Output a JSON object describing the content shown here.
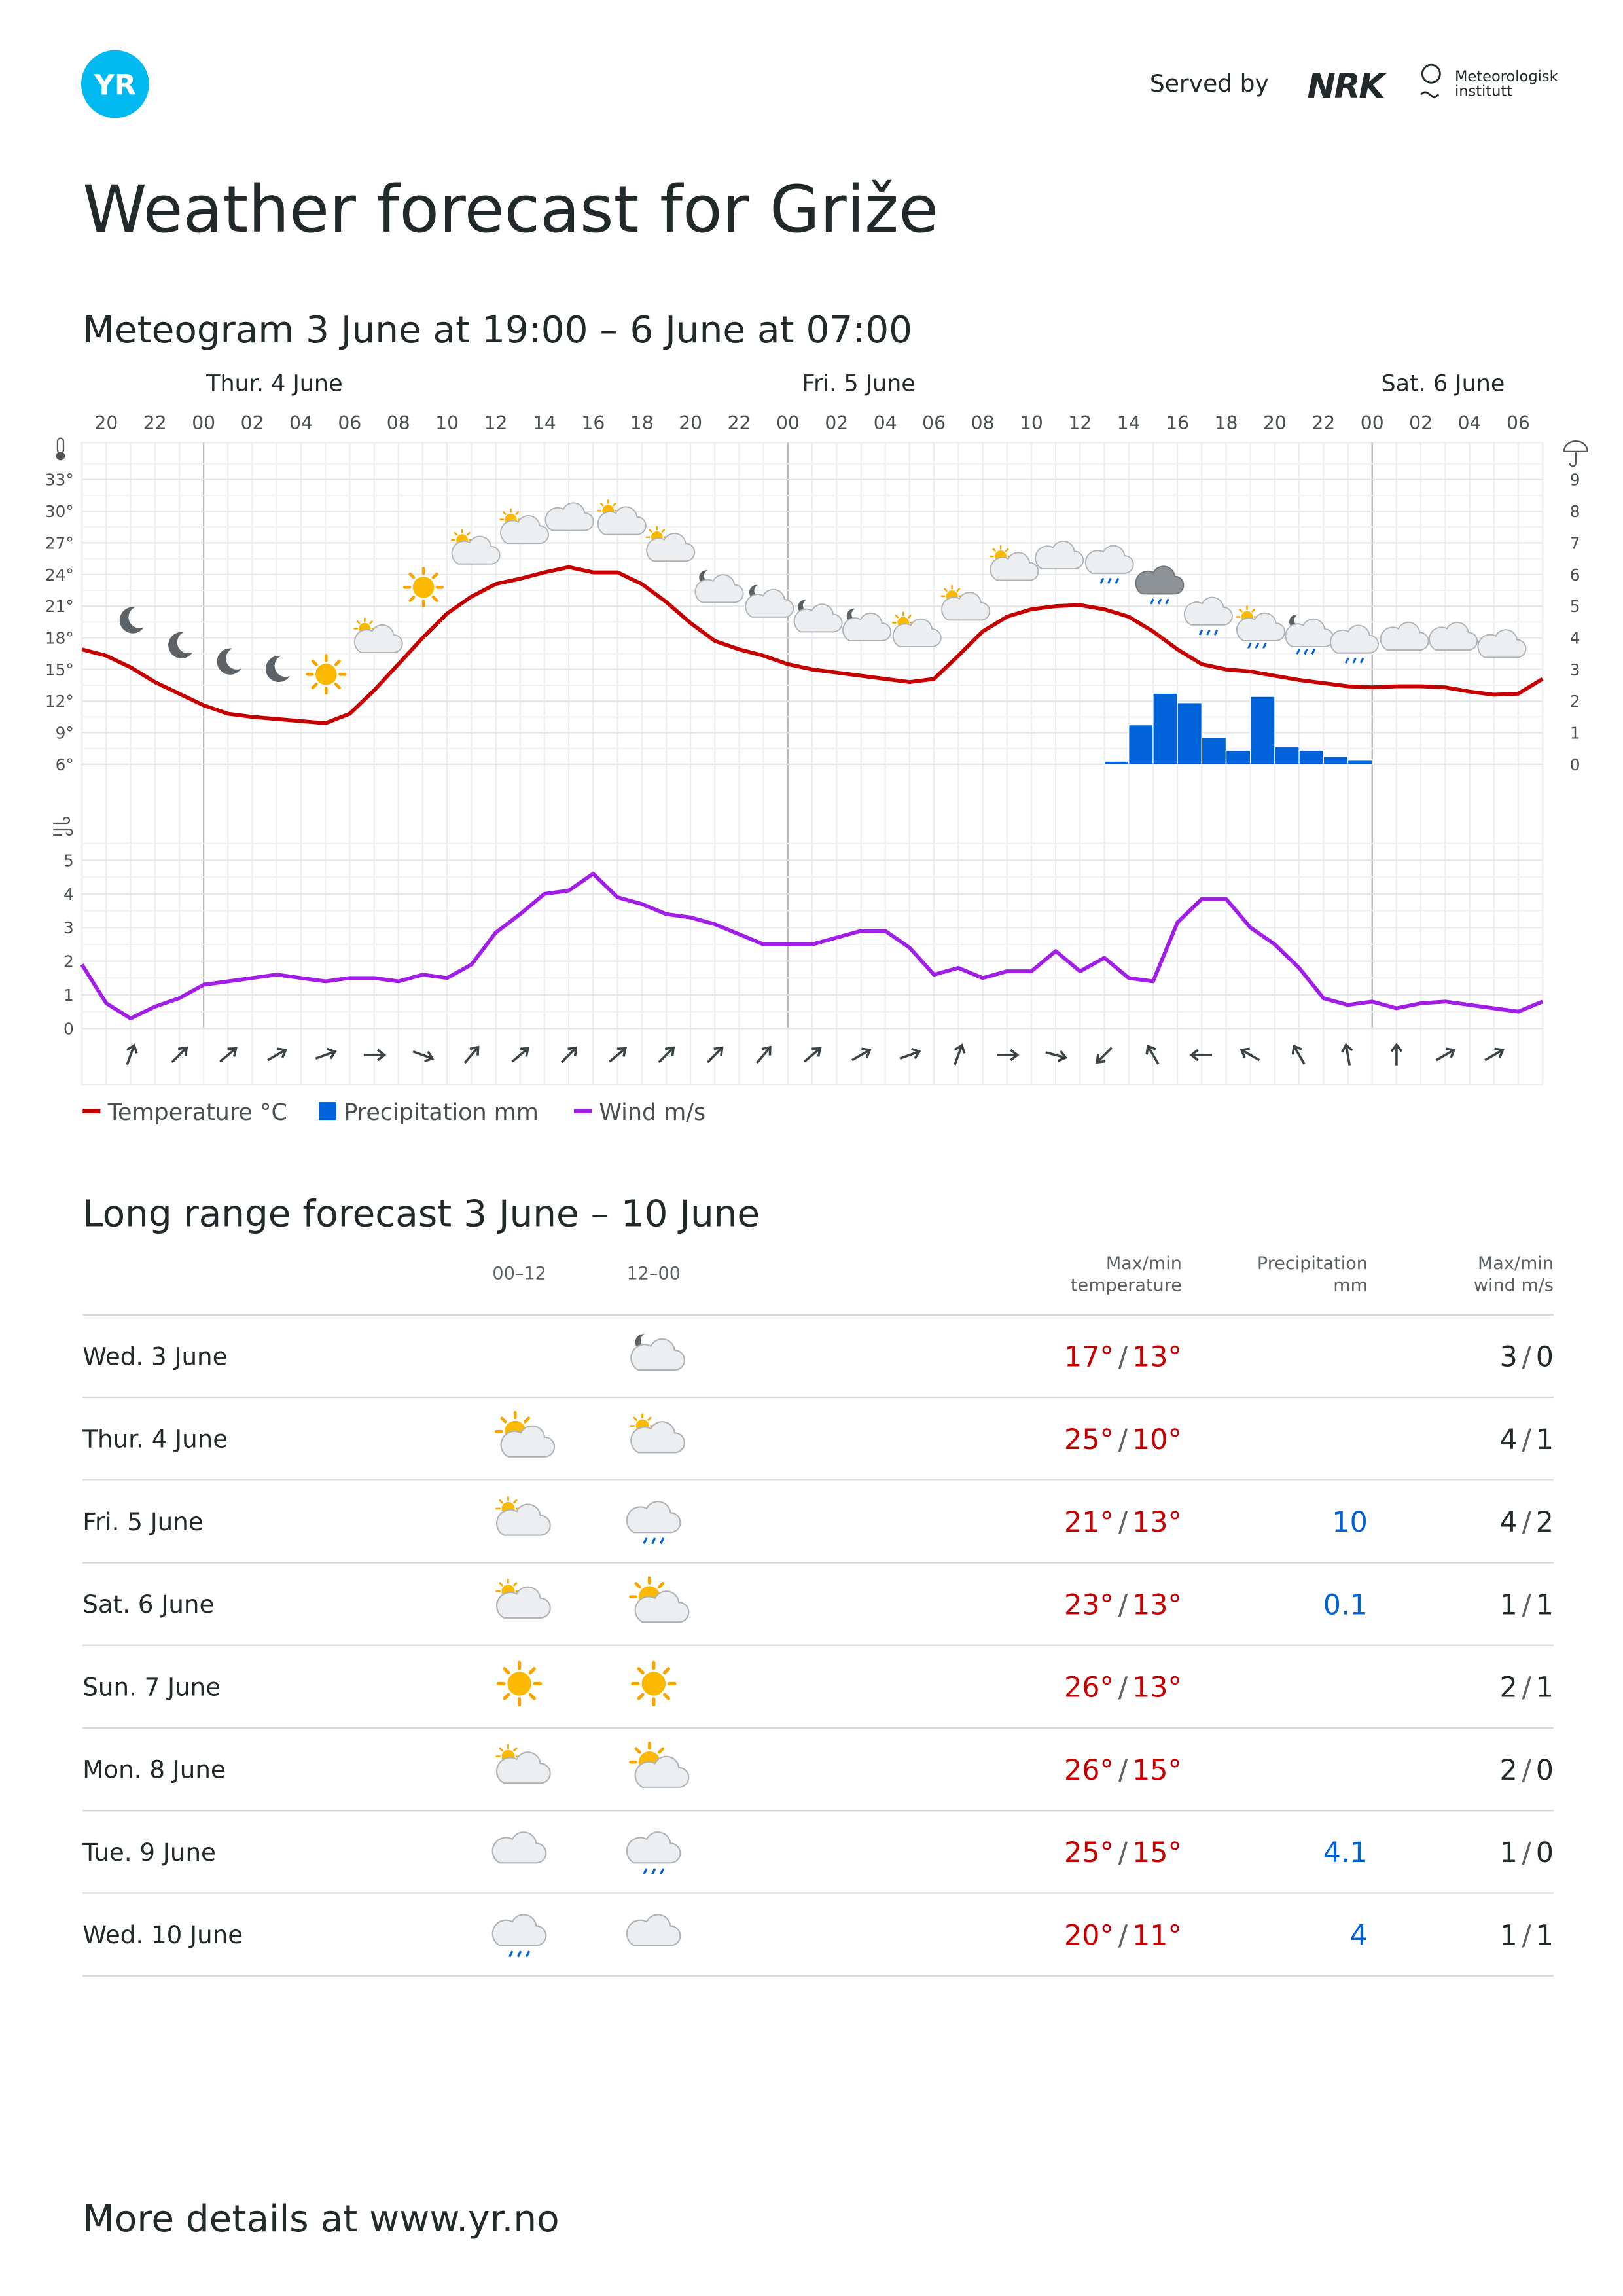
{
  "header": {
    "logo": "YR",
    "served_by": "Served by",
    "partner": "NRK",
    "institute": [
      "Meteorologisk",
      "institutt"
    ]
  },
  "title": "Weather forecast for Griže",
  "meteogram": {
    "type": "line",
    "title": "Meteogram 3 June at 19:00 – 6 June at 07:00",
    "days": [
      "Thur. 4 June",
      "Fri. 5 June",
      "Sat. 6 June"
    ],
    "hour_labels": [
      "20",
      "22",
      "00",
      "02",
      "04",
      "06",
      "08",
      "10",
      "12",
      "14",
      "16",
      "18",
      "20",
      "22",
      "00",
      "02",
      "04",
      "06",
      "08",
      "10",
      "12",
      "14",
      "16",
      "18",
      "20",
      "22",
      "00",
      "02",
      "04",
      "06"
    ],
    "temperature": {
      "name": "Temperature °C",
      "color": "#c60000",
      "ylim": [
        6,
        33
      ],
      "yticks": [
        {
          "value": 6,
          "label": "6°"
        },
        {
          "value": 9,
          "label": "9°"
        },
        {
          "value": 12,
          "label": "12°"
        },
        {
          "value": 15,
          "label": "15°"
        },
        {
          "value": 18,
          "label": "18°"
        },
        {
          "value": 21,
          "label": "21°"
        },
        {
          "value": 24,
          "label": "24°"
        },
        {
          "value": 27,
          "label": "27°"
        },
        {
          "value": 30,
          "label": "30°"
        },
        {
          "value": 33,
          "label": "33°"
        }
      ],
      "values": [
        16.9,
        16.3,
        15.2,
        13.8,
        12.7,
        11.6,
        10.8,
        10.5,
        10.3,
        10.1,
        9.9,
        10.8,
        13,
        15.5,
        18,
        20.3,
        21.9,
        23.1,
        23.6,
        24.2,
        24.7,
        24.2,
        24.2,
        23.1,
        21.4,
        19.4,
        17.7,
        16.9,
        16.3,
        15.5,
        15,
        14.7,
        14.4,
        14.1,
        13.8,
        14.1,
        16.3,
        18.6,
        20,
        20.7,
        21,
        21.1,
        20.7,
        20,
        18.6,
        16.9,
        15.5,
        15,
        14.8,
        14.4,
        14,
        13.7,
        13.4,
        13.3,
        13.4,
        13.4,
        13.3,
        12.9,
        12.6,
        12.7,
        14.1
      ]
    },
    "precipitation": {
      "name": "Precipitation mm",
      "color": "#0062d8",
      "ylim": [
        0,
        9
      ],
      "yticks": [
        0,
        1,
        2,
        3,
        4,
        5,
        6,
        7,
        8,
        9
      ],
      "values": [
        null,
        null,
        null,
        null,
        null,
        null,
        null,
        null,
        null,
        null,
        null,
        null,
        null,
        null,
        null,
        null,
        null,
        null,
        null,
        null,
        null,
        null,
        null,
        null,
        null,
        null,
        null,
        null,
        null,
        null,
        null,
        null,
        null,
        null,
        null,
        null,
        null,
        null,
        null,
        null,
        null,
        null,
        0.05,
        1.2,
        2.2,
        1.9,
        0.8,
        0.4,
        2.1,
        0.5,
        0.4,
        0.2,
        0.1,
        null,
        null,
        null,
        null,
        null,
        null,
        null,
        null
      ]
    },
    "wind": {
      "name": "Wind m/s",
      "color": "#a11ee6",
      "ylim": [
        0,
        5
      ],
      "yticks": [
        0,
        1,
        2,
        3,
        4,
        5
      ],
      "values": [
        1.9,
        0.75,
        0.3,
        0.65,
        0.9,
        1.3,
        1.4,
        1.5,
        1.6,
        1.5,
        1.4,
        1.5,
        1.5,
        1.4,
        1.6,
        1.5,
        1.9,
        2.85,
        3.4,
        4,
        4.1,
        4.6,
        3.9,
        3.7,
        3.4,
        3.3,
        3.1,
        2.8,
        2.5,
        2.5,
        2.5,
        2.7,
        2.9,
        2.9,
        2.4,
        1.6,
        1.8,
        1.5,
        1.7,
        1.7,
        2.3,
        1.7,
        2.1,
        1.5,
        1.4,
        3.15,
        3.85,
        3.85,
        3,
        2.5,
        1.8,
        0.9,
        0.7,
        0.8,
        0.6,
        0.75,
        0.8,
        0.7,
        0.6,
        0.5,
        0.8
      ],
      "directions": [
        20,
        45,
        50,
        60,
        70,
        90,
        110,
        40,
        50,
        45,
        50,
        45,
        45,
        40,
        50,
        60,
        70,
        20,
        90,
        105,
        225,
        330,
        270,
        300,
        330,
        350,
        0,
        60,
        60
      ]
    }
  },
  "table": {
    "title": "Long range forecast 3 June – 10 June",
    "columns": [
      "00–12",
      "12–00",
      [
        "Max/min",
        "temperature"
      ],
      [
        "Precipitation",
        "mm"
      ],
      [
        "Max/min",
        "wind m/s"
      ]
    ],
    "separator": "/",
    "rows": [
      {
        "day": "Wed. 3 June",
        "max": "17°",
        "min": "13°",
        "precip": null,
        "wind_max": "3",
        "wind_min": "0"
      },
      {
        "day": "Thur. 4 June",
        "max": "25°",
        "min": "10°",
        "precip": null,
        "wind_max": "4",
        "wind_min": "1"
      },
      {
        "day": "Fri. 5 June",
        "max": "21°",
        "min": "13°",
        "precip": "10",
        "wind_max": "4",
        "wind_min": "2"
      },
      {
        "day": "Sat. 6 June",
        "max": "23°",
        "min": "13°",
        "precip": "0.1",
        "wind_max": "1",
        "wind_min": "1"
      },
      {
        "day": "Sun. 7 June",
        "max": "26°",
        "min": "13°",
        "precip": null,
        "wind_max": "2",
        "wind_min": "1"
      },
      {
        "day": "Mon. 8 June",
        "max": "26°",
        "min": "15°",
        "precip": null,
        "wind_max": "2",
        "wind_min": "0"
      },
      {
        "day": "Tue. 9 June",
        "max": "25°",
        "min": "15°",
        "precip": "4.1",
        "wind_max": "1",
        "wind_min": "0"
      },
      {
        "day": "Wed. 10 June",
        "max": "20°",
        "min": "11°",
        "precip": "4",
        "wind_max": "1",
        "wind_min": "1"
      }
    ]
  },
  "footer": "More details at www.yr.no"
}
